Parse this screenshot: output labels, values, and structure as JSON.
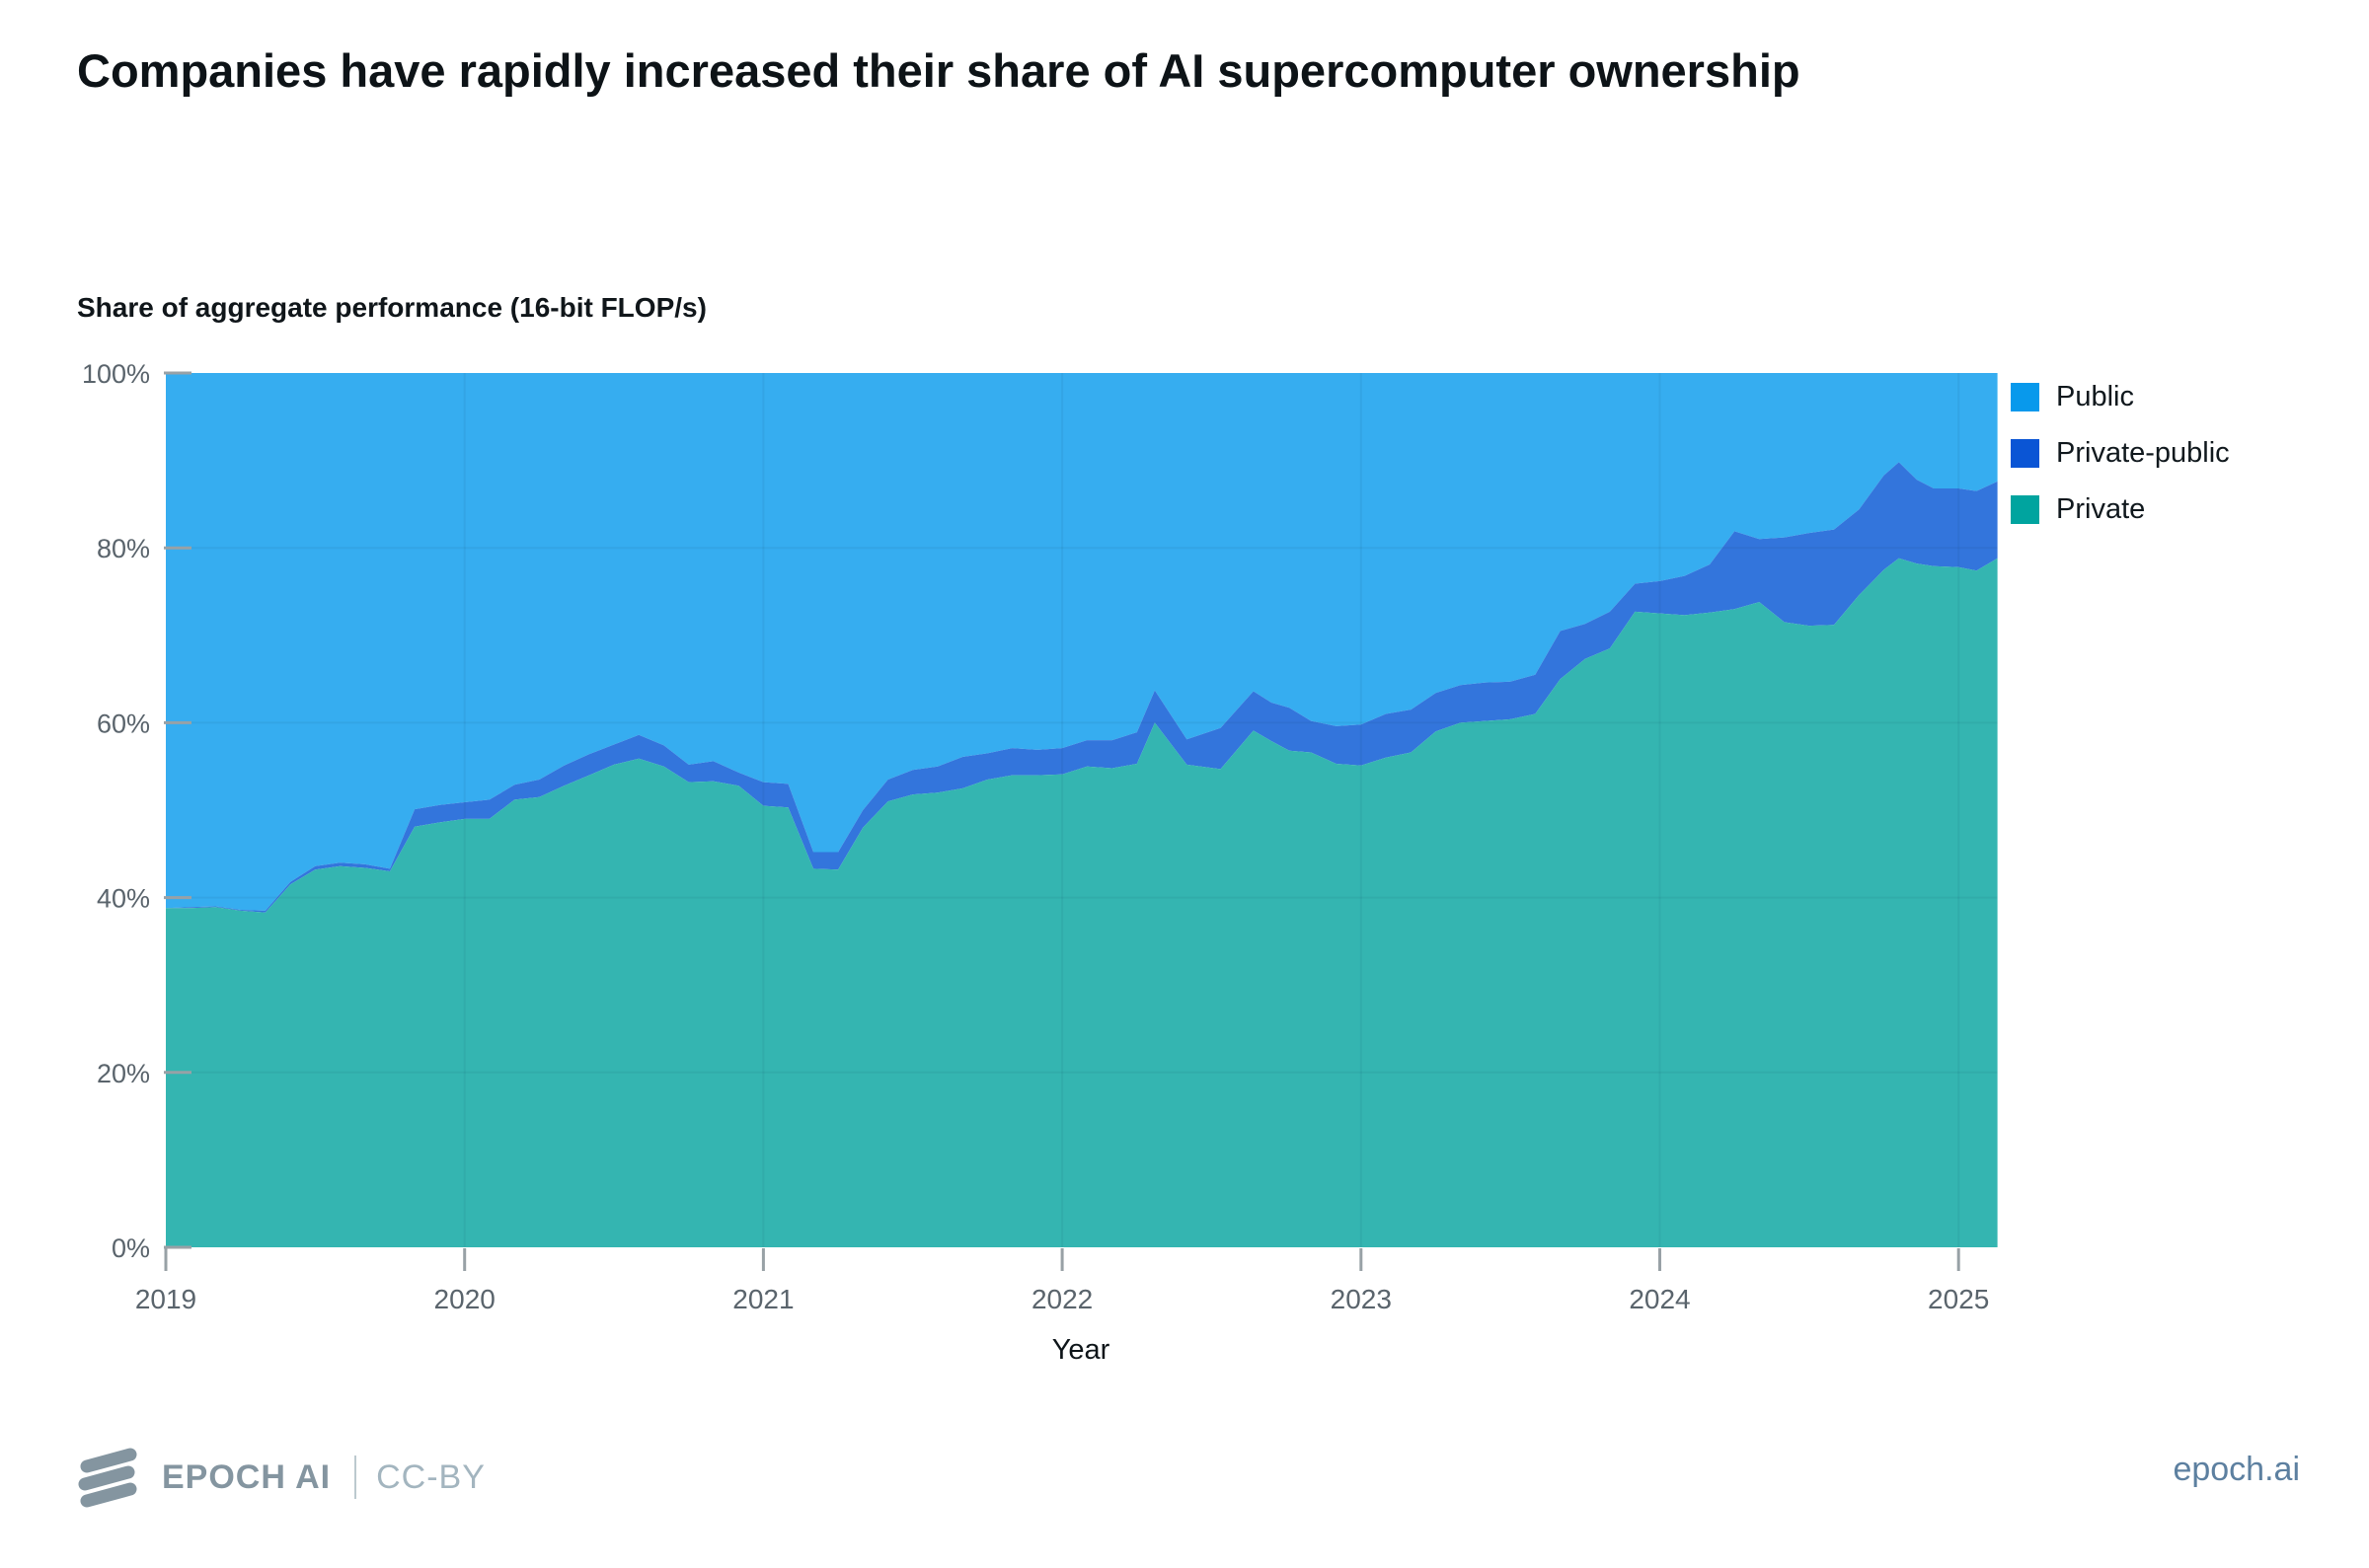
{
  "footer": {
    "brand": "EPOCH AI",
    "license": "CC-BY",
    "site": "epoch.ai"
  },
  "chart_data": {
    "type": "area",
    "stacked": true,
    "title": "Companies have rapidly increased their share of AI supercomputer ownership",
    "ylabel": "Share of aggregate performance (16-bit FLOP/s)",
    "xlabel": "Year",
    "xlim": [
      2019,
      2025.13
    ],
    "ylim": [
      0,
      100
    ],
    "grid": true,
    "grid_color": "rgba(10,50,80,0.07)",
    "tick_color": "#98a1a6",
    "legend_position": "top-right",
    "x_ticks": {
      "values": [
        2019,
        2020,
        2021,
        2022,
        2023,
        2024,
        2025
      ],
      "labels": [
        "2019",
        "2020",
        "2021",
        "2022",
        "2023",
        "2024",
        "2025"
      ]
    },
    "y_ticks": {
      "values": [
        0,
        20,
        40,
        60,
        80,
        100
      ],
      "labels": [
        "0%",
        "20%",
        "40%",
        "60%",
        "80%",
        "100%"
      ]
    },
    "x": [
      2019.0,
      2019.083,
      2019.167,
      2019.25,
      2019.333,
      2019.417,
      2019.5,
      2019.583,
      2019.667,
      2019.75,
      2019.833,
      2019.917,
      2020.0,
      2020.083,
      2020.167,
      2020.25,
      2020.333,
      2020.417,
      2020.5,
      2020.583,
      2020.667,
      2020.75,
      2020.833,
      2020.917,
      2021.0,
      2021.083,
      2021.167,
      2021.25,
      2021.333,
      2021.417,
      2021.5,
      2021.583,
      2021.667,
      2021.75,
      2021.833,
      2021.917,
      2022.0,
      2022.083,
      2022.167,
      2022.25,
      2022.31,
      2022.417,
      2022.53,
      2022.64,
      2022.7,
      2022.76,
      2022.833,
      2022.917,
      2023.0,
      2023.083,
      2023.167,
      2023.25,
      2023.333,
      2023.417,
      2023.5,
      2023.583,
      2023.667,
      2023.75,
      2023.833,
      2023.917,
      2024.0,
      2024.083,
      2024.167,
      2024.25,
      2024.333,
      2024.417,
      2024.5,
      2024.583,
      2024.667,
      2024.75,
      2024.8,
      2024.86,
      2024.917,
      2025.0,
      2025.06,
      2025.13
    ],
    "series": [
      {
        "name": "Public",
        "swatch_color": "#0899EC",
        "area_color": "#36ADF0",
        "values": [
          61.2,
          61.1,
          61.0,
          61.4,
          61.5,
          58.2,
          56.4,
          56.0,
          56.2,
          56.7,
          49.9,
          49.4,
          49.1,
          48.8,
          47.1,
          46.5,
          44.9,
          43.6,
          42.5,
          41.4,
          42.6,
          44.8,
          44.4,
          45.7,
          46.8,
          47.0,
          54.8,
          54.8,
          50.0,
          46.5,
          45.4,
          45.0,
          43.9,
          43.5,
          42.9,
          43.1,
          42.9,
          42.0,
          42.0,
          41.1,
          36.3,
          41.9,
          40.6,
          36.4,
          37.7,
          38.3,
          39.8,
          40.4,
          40.2,
          39.0,
          38.5,
          36.6,
          35.7,
          35.4,
          35.3,
          34.5,
          29.5,
          28.7,
          27.3,
          24.1,
          23.8,
          23.2,
          21.9,
          18.1,
          19.0,
          18.8,
          18.3,
          17.9,
          15.6,
          11.7,
          10.2,
          12.2,
          13.2,
          13.2,
          13.5,
          12.4
        ]
      },
      {
        "name": "Private-public",
        "swatch_color": "#0A55D5",
        "area_color": "#3375DC",
        "values": [
          0.0,
          0.1,
          0.1,
          0.1,
          0.2,
          0.3,
          0.4,
          0.4,
          0.4,
          0.3,
          2.0,
          2.0,
          1.9,
          2.2,
          1.7,
          2.0,
          2.3,
          2.4,
          2.3,
          2.7,
          2.4,
          2.0,
          2.3,
          1.5,
          2.7,
          2.7,
          1.9,
          2.0,
          2.0,
          2.5,
          2.8,
          3.0,
          3.6,
          3.0,
          3.1,
          2.9,
          3.0,
          3.0,
          3.2,
          3.6,
          3.7,
          2.9,
          4.7,
          4.5,
          4.4,
          4.9,
          3.6,
          4.3,
          4.7,
          5.0,
          4.9,
          4.4,
          4.3,
          4.4,
          4.3,
          4.5,
          5.5,
          4.0,
          4.2,
          3.2,
          3.7,
          4.5,
          5.5,
          8.9,
          7.2,
          9.7,
          10.6,
          10.9,
          9.8,
          10.8,
          11.0,
          9.6,
          8.9,
          9.0,
          9.1,
          8.8
        ]
      },
      {
        "name": "Private",
        "swatch_color": "#00A49F",
        "area_color": "#34B5B1",
        "values": [
          38.8,
          38.8,
          38.9,
          38.5,
          38.3,
          41.5,
          43.2,
          43.6,
          43.4,
          43.0,
          48.1,
          48.6,
          49.0,
          49.0,
          51.2,
          51.5,
          52.8,
          54.0,
          55.2,
          55.9,
          55.0,
          53.2,
          53.3,
          52.8,
          50.5,
          50.3,
          43.3,
          43.2,
          48.0,
          51.0,
          51.8,
          52.0,
          52.5,
          53.5,
          54.0,
          54.0,
          54.1,
          55.0,
          54.8,
          55.3,
          60.0,
          55.2,
          54.7,
          59.1,
          57.9,
          56.8,
          56.6,
          55.3,
          55.1,
          56.0,
          56.6,
          59.0,
          60.0,
          60.2,
          60.4,
          61.0,
          65.0,
          67.3,
          68.5,
          72.7,
          72.5,
          72.3,
          72.6,
          73.0,
          73.8,
          71.5,
          71.1,
          71.2,
          74.6,
          77.5,
          78.8,
          78.2,
          77.9,
          77.8,
          77.4,
          78.8
        ]
      }
    ]
  }
}
